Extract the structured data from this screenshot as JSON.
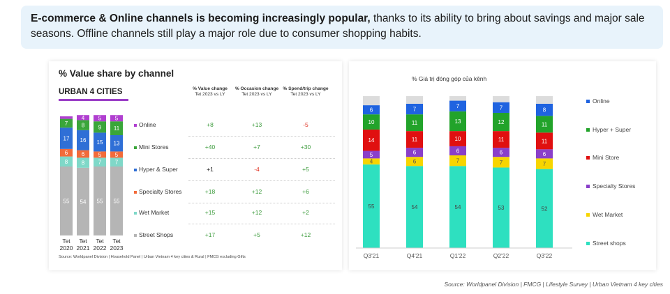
{
  "banner": {
    "bold": "E-commerce & Online channels is becoming increasingly popular,",
    "text": " thanks to its ability to bring about savings and major sale seasons. Offline channels still play a major role due to consumer shopping habits."
  },
  "left_panel": {
    "title": "% Value share by channel",
    "subtitle": "URBAN 4 CITIES",
    "col_headers": [
      {
        "head": "% Value change",
        "sub": "Tet 2023 vs LY"
      },
      {
        "head": "% Occasion change",
        "sub": "Tet 2023 vs LY"
      },
      {
        "head": "% Spend/trip change",
        "sub": "Tet 2023 vs LY"
      }
    ],
    "rows": [
      {
        "label": "Online",
        "values": [
          "+8",
          "+13",
          "-5"
        ],
        "colors": [
          "#3a9a3a",
          "#3a9a3a",
          "#e03020"
        ]
      },
      {
        "label": "Mini Stores",
        "values": [
          "+40",
          "+7",
          "+30"
        ],
        "colors": [
          "#3a9a3a",
          "#3a9a3a",
          "#3a9a3a"
        ]
      },
      {
        "label": "Hyper & Super",
        "values": [
          "+1",
          "-4",
          "+5"
        ],
        "colors": [
          "#222222",
          "#e03020",
          "#3a9a3a"
        ]
      },
      {
        "label": "Specialty Stores",
        "values": [
          "+18",
          "+12",
          "+6"
        ],
        "colors": [
          "#3a9a3a",
          "#3a9a3a",
          "#3a9a3a"
        ]
      },
      {
        "label": "Wet Market",
        "values": [
          "+15",
          "+12",
          "+2"
        ],
        "colors": [
          "#3a9a3a",
          "#3a9a3a",
          "#3a9a3a"
        ]
      },
      {
        "label": "Street Shops",
        "values": [
          "+17",
          "+5",
          "+12"
        ],
        "colors": [
          "#3a9a3a",
          "#3a9a3a",
          "#3a9a3a"
        ]
      }
    ],
    "source": "Source: Worldpanel Division | Household Panel | Urban Vietnam 4 key cities & Rural | FMCG excluding Gifts"
  },
  "right_panel": {
    "title": "% Giá trị đóng góp của kênh"
  },
  "bottom_source": "Source: Worldpanel Division | FMCG | Lifestyle Survey | Urban Vietnam 4 key cities",
  "chart_data": [
    {
      "type": "bar",
      "stacked": true,
      "title": "% Value share by channel",
      "subtitle": "URBAN 4 CITIES",
      "categories": [
        "Tet 2020",
        "Tet 2021",
        "Tet 2022",
        "Tet 2023"
      ],
      "series": [
        {
          "name": "Street Shops",
          "color": "#b5b5b5",
          "values": [
            55,
            54,
            55,
            55
          ]
        },
        {
          "name": "Wet Market",
          "color": "#7fd8c8",
          "values": [
            8,
            8,
            7,
            7
          ]
        },
        {
          "name": "Specialty Stores",
          "color": "#f26b3a",
          "values": [
            6,
            6,
            5,
            5
          ]
        },
        {
          "name": "Hyper & Super",
          "color": "#2f6fd6",
          "values": [
            17,
            16,
            15,
            13
          ]
        },
        {
          "name": "Mini Stores",
          "color": "#3aa63a",
          "values": [
            7,
            8,
            9,
            11
          ]
        },
        {
          "name": "Online",
          "color": "#b03fd0",
          "values": [
            2,
            4,
            5,
            5
          ]
        }
      ],
      "ylim": [
        0,
        100
      ]
    },
    {
      "type": "bar",
      "stacked": true,
      "title": "% Giá trị đóng góp của kênh",
      "categories": [
        "Q3'21",
        "Q4'21",
        "Q1'22",
        "Q2'22",
        "Q3'22"
      ],
      "series": [
        {
          "name": "Street shops",
          "color": "#2ee0c0",
          "values": [
            55,
            54,
            54,
            53,
            52
          ]
        },
        {
          "name": "Wet Market",
          "color": "#f7d500",
          "values": [
            4,
            6,
            7,
            7,
            7
          ]
        },
        {
          "name": "Specialty Stores",
          "color": "#8a3fc9",
          "values": [
            5,
            6,
            6,
            6,
            6
          ]
        },
        {
          "name": "Mini Store",
          "color": "#e01010",
          "values": [
            14,
            11,
            10,
            11,
            11
          ]
        },
        {
          "name": "Hyper + Super",
          "color": "#22a32a",
          "values": [
            10,
            11,
            13,
            12,
            11
          ]
        },
        {
          "name": "Online",
          "color": "#1f63e0",
          "values": [
            6,
            7,
            7,
            7,
            8
          ]
        }
      ],
      "legend": [
        "Online",
        "Hyper + Super",
        "Mini Store",
        "Specialty Stores",
        "Wet Market",
        "Street shops"
      ],
      "legend_position": "right",
      "ylim": [
        0,
        100
      ]
    }
  ]
}
